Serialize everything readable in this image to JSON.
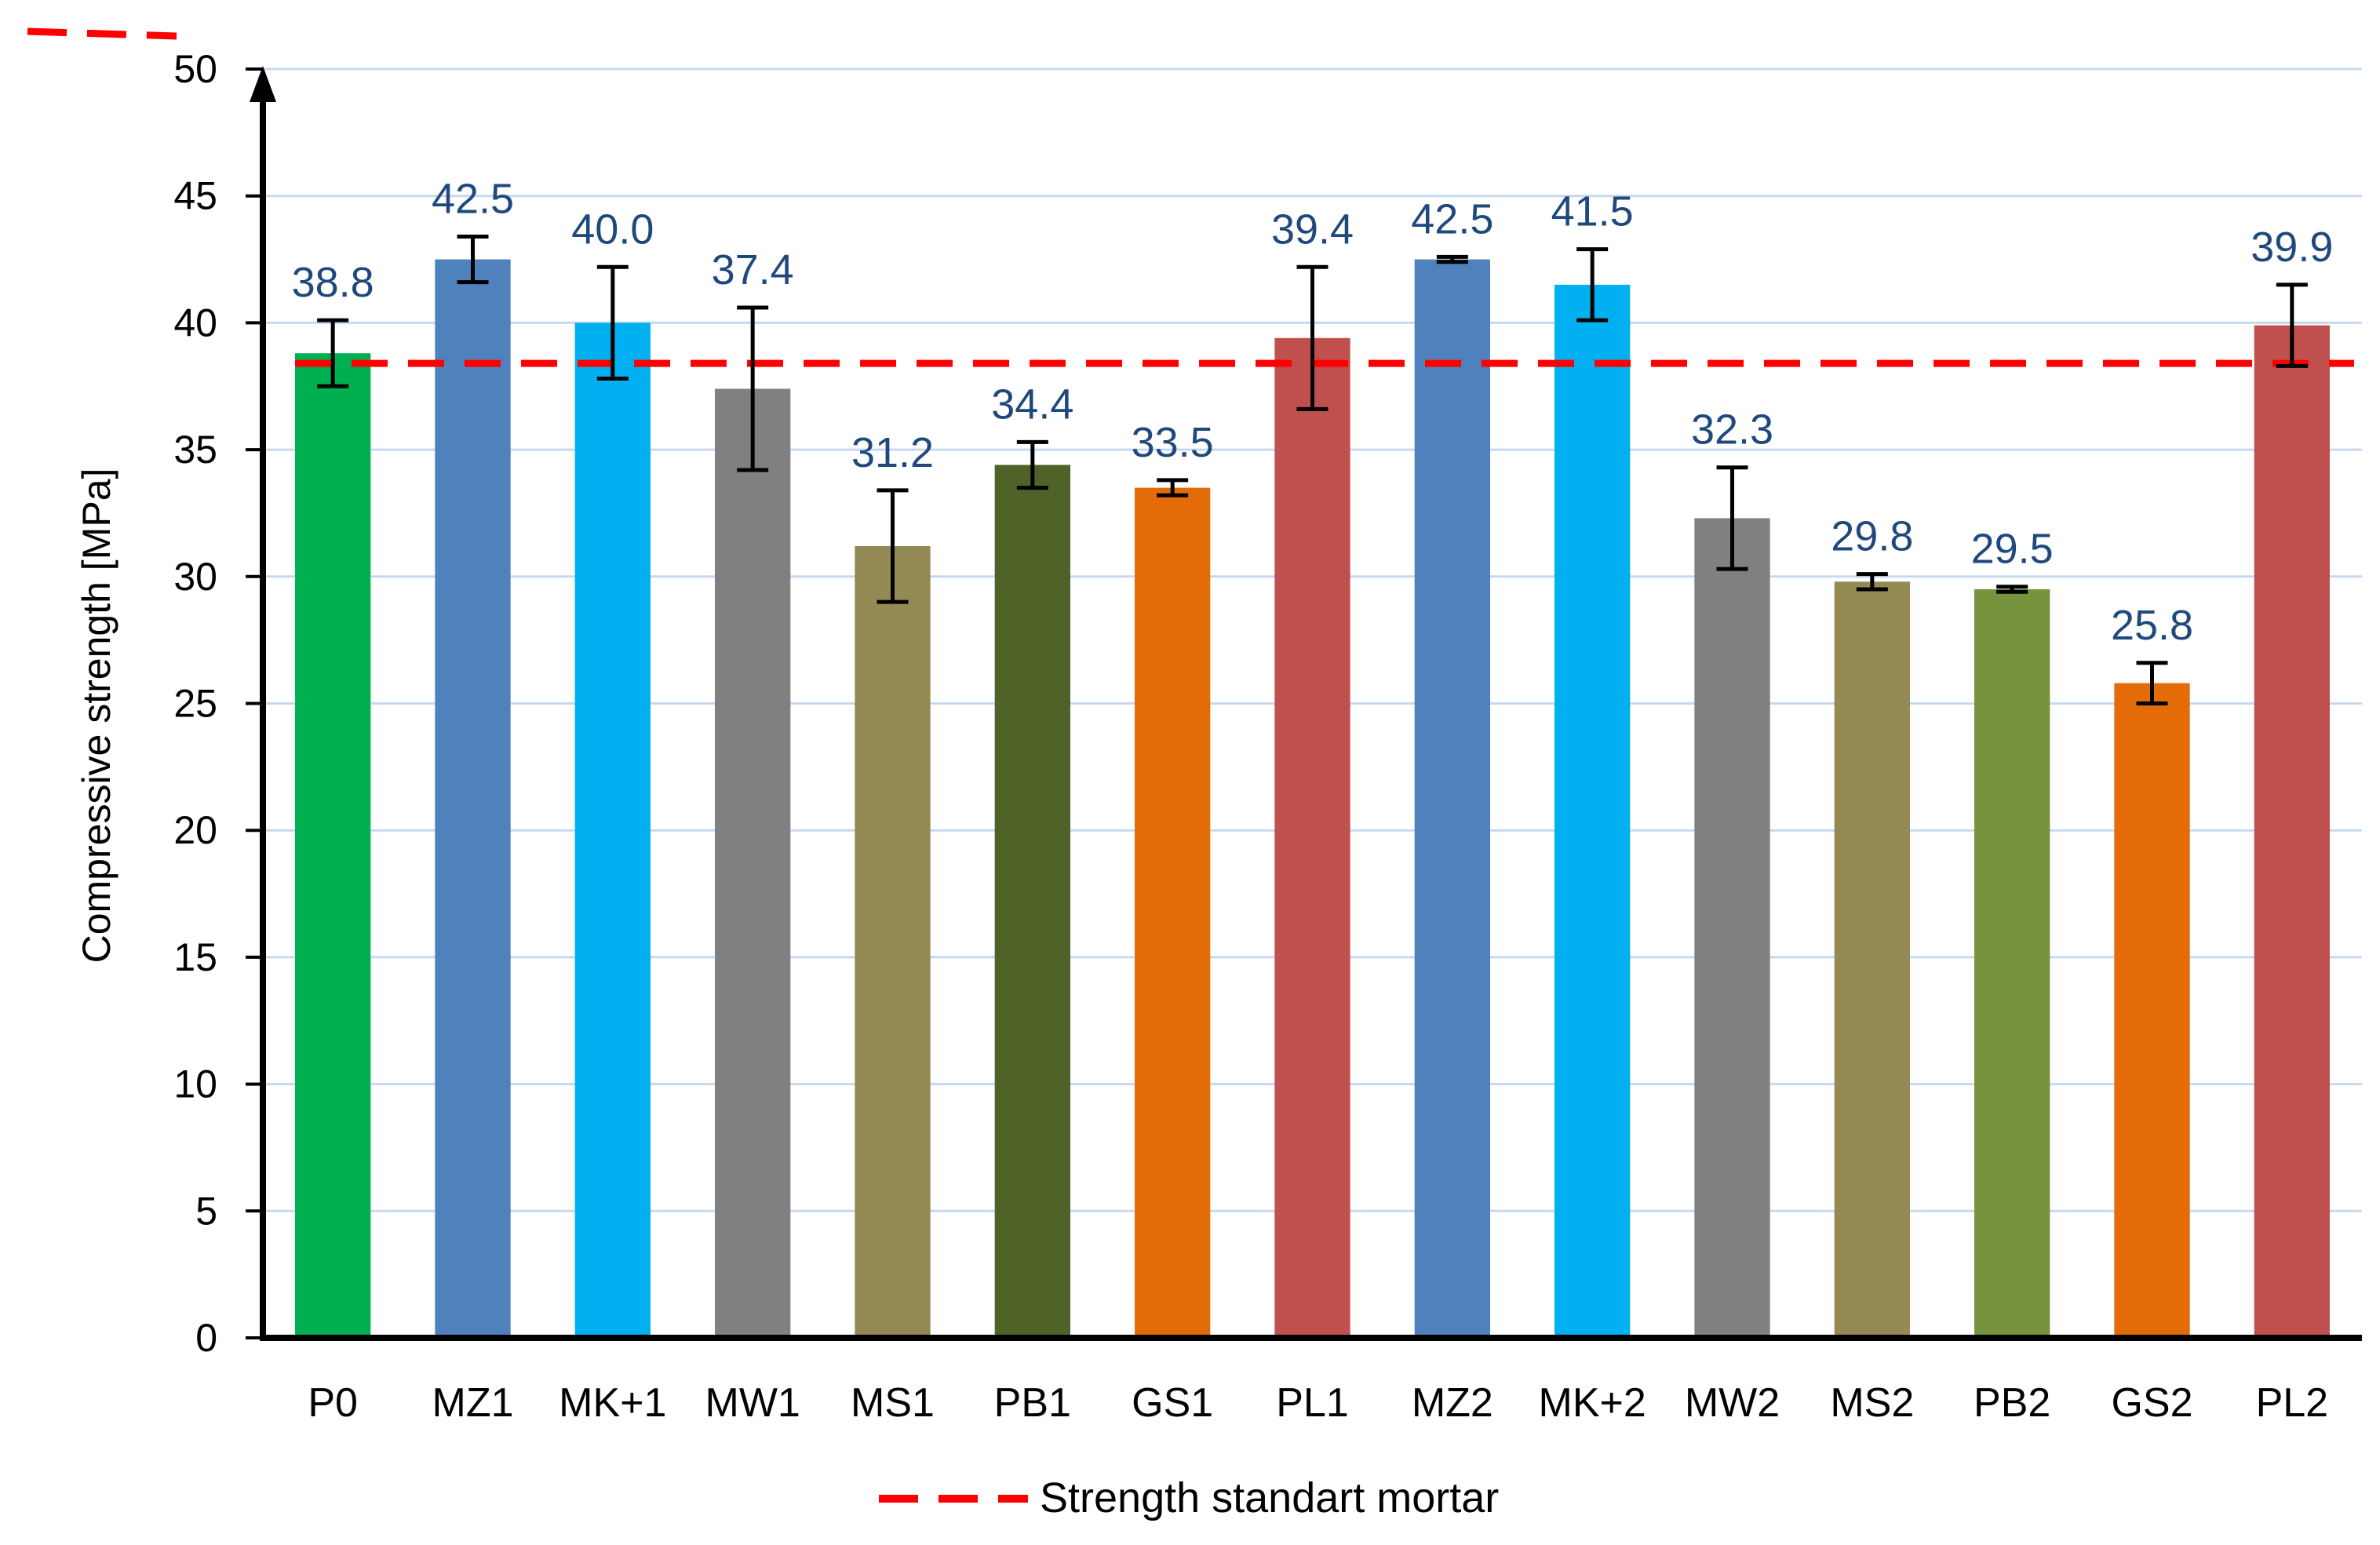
{
  "chart_data": {
    "type": "bar",
    "title": "",
    "xlabel": "",
    "ylabel": "Compressive strength [MPa]",
    "ylim": [
      0,
      50
    ],
    "y_ticks": [
      "0",
      "5",
      "10",
      "15",
      "20",
      "25",
      "30",
      "35",
      "40",
      "45",
      "50"
    ],
    "grid": true,
    "categories": [
      "P0",
      "MZ1",
      "MK+1",
      "MW1",
      "MS1",
      "PB1",
      "GS1",
      "PL1",
      "MZ2",
      "MK+2",
      "MW2",
      "MS2",
      "PB2",
      "GS2",
      "PL2"
    ],
    "values": [
      38.8,
      42.5,
      40.0,
      37.4,
      31.2,
      34.4,
      33.5,
      39.4,
      42.5,
      41.5,
      32.3,
      29.8,
      29.5,
      25.8,
      39.9
    ],
    "value_labels": [
      "38.8",
      "42.5",
      "40.0",
      "37.4",
      "31.2",
      "34.4",
      "33.5",
      "39.4",
      "42.5",
      "41.5",
      "32.3",
      "29.8",
      "29.5",
      "25.8",
      "39.9"
    ],
    "error": [
      1.3,
      0.9,
      2.2,
      3.2,
      2.2,
      0.9,
      0.3,
      2.8,
      0.1,
      1.4,
      2.0,
      0.3,
      0.1,
      0.8,
      1.6
    ],
    "colors": [
      "#00b050",
      "#4f81bd",
      "#00b0f0",
      "#808080",
      "#948a54",
      "#4f6228",
      "#e36c09",
      "#c0504d",
      "#4f81bd",
      "#00b0f0",
      "#808080",
      "#948a54",
      "#77933c",
      "#e36c09",
      "#c0504d"
    ],
    "reference_line": {
      "name": "Strength standart mortar",
      "value": 38.4,
      "color": "#ff0000",
      "style": "dashed"
    },
    "label_color": "#1f497d",
    "legend_position": "bottom"
  }
}
